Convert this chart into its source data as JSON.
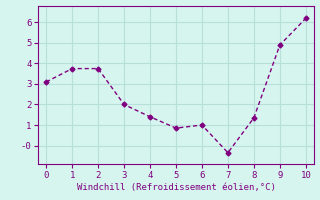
{
  "x": [
    0,
    1,
    2,
    3,
    4,
    5,
    6,
    7,
    8,
    9,
    10
  ],
  "y": [
    3.1,
    3.75,
    3.75,
    2.0,
    1.4,
    0.85,
    1.0,
    -0.35,
    1.35,
    4.9,
    6.2
  ],
  "line_color": "#800080",
  "marker": "D",
  "marker_size": 2.5,
  "line_width": 1.0,
  "xlabel": "Windchill (Refroidissement éolien,°C)",
  "xlim": [
    -0.3,
    10.3
  ],
  "ylim": [
    -0.9,
    6.8
  ],
  "xticks": [
    0,
    1,
    2,
    3,
    4,
    5,
    6,
    7,
    8,
    9,
    10
  ],
  "yticks": [
    0,
    1,
    2,
    3,
    4,
    5,
    6
  ],
  "ytick_labels": [
    "-0",
    "1",
    "2",
    "3",
    "4",
    "5",
    "6"
  ],
  "background_color": "#d6f5ef",
  "grid_color": "#b8e0da",
  "tick_fontsize": 6.5,
  "xlabel_fontsize": 6.5
}
